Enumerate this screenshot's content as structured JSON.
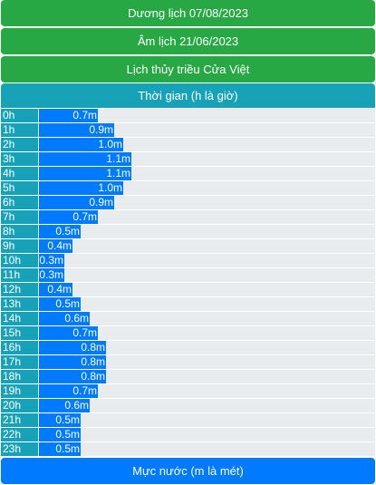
{
  "header": {
    "solar_date": "Dương lịch 07/08/2023",
    "lunar_date": "Âm lịch 21/06/2023",
    "title": "Lịch thủy triều Cửa Việt",
    "time_label": "Thời gian (h là giờ)"
  },
  "footer": {
    "level_label": "Mực nước (m là mét)"
  },
  "colors": {
    "green": "#28a745",
    "teal": "#17a2b8",
    "blue": "#007bff",
    "track": "#e9ecef"
  },
  "chart_data": {
    "type": "bar",
    "orientation": "horizontal",
    "categories": [
      "0h",
      "1h",
      "2h",
      "3h",
      "4h",
      "5h",
      "6h",
      "7h",
      "8h",
      "9h",
      "10h",
      "11h",
      "12h",
      "13h",
      "14h",
      "15h",
      "16h",
      "17h",
      "18h",
      "19h",
      "20h",
      "21h",
      "22h",
      "23h"
    ],
    "values": [
      0.7,
      0.9,
      1.0,
      1.1,
      1.1,
      1.0,
      0.9,
      0.7,
      0.5,
      0.4,
      0.3,
      0.3,
      0.4,
      0.5,
      0.6,
      0.7,
      0.8,
      0.8,
      0.8,
      0.7,
      0.6,
      0.5,
      0.5,
      0.5
    ],
    "value_labels": [
      "0.7m",
      "0.9m",
      "1.0m",
      "1.1m",
      "1.1m",
      "1.0m",
      "0.9m",
      "0.7m",
      "0.5m",
      "0.4m",
      "0.3m",
      "0.3m",
      "0.4m",
      "0.5m",
      "0.6m",
      "0.7m",
      "0.8m",
      "0.8m",
      "0.8m",
      "0.7m",
      "0.6m",
      "0.5m",
      "0.5m",
      "0.5m"
    ],
    "xlabel": "Mực nước (m là mét)",
    "ylabel": "Thời gian (h là giờ)",
    "xlim": [
      0,
      4
    ],
    "grid": false,
    "legend": "none"
  }
}
